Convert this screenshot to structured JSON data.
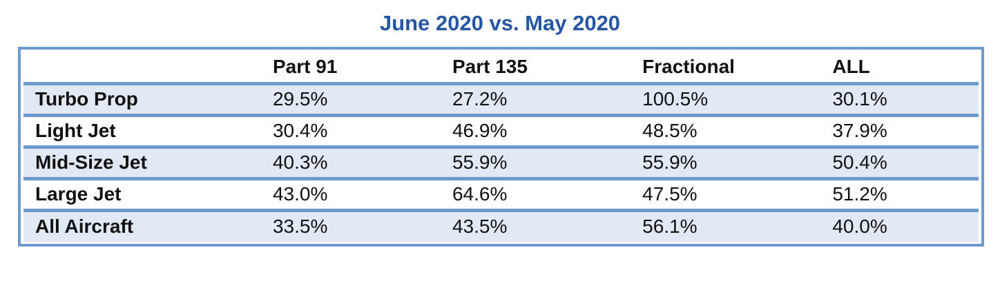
{
  "title": "June 2020 vs. May 2020",
  "colors": {
    "title_blue": "#2456a4",
    "border_blue": "#6e99cc",
    "band_light_blue": "#e0e9f4",
    "band_white": "#ffffff",
    "text": "#111111"
  },
  "chart_data": {
    "type": "table",
    "title": "June 2020 vs. May 2020",
    "columns": [
      "Part 91",
      "Part 135",
      "Fractional",
      "ALL"
    ],
    "row_labels": [
      "Turbo Prop",
      "Light Jet",
      "Mid-Size Jet",
      "Large Jet",
      "All Aircraft"
    ],
    "rows": [
      {
        "label": "Turbo Prop",
        "values": [
          "29.5%",
          "27.2%",
          "100.5%",
          "30.1%"
        ]
      },
      {
        "label": "Light Jet",
        "values": [
          "30.4%",
          "46.9%",
          "48.5%",
          "37.9%"
        ]
      },
      {
        "label": "Mid-Size Jet",
        "values": [
          "40.3%",
          "55.9%",
          "55.9%",
          "50.4%"
        ]
      },
      {
        "label": "Large Jet",
        "values": [
          "43.0%",
          "64.6%",
          "47.5%",
          "51.2%"
        ]
      },
      {
        "label": "All Aircraft",
        "values": [
          "33.5%",
          "43.5%",
          "56.1%",
          "40.0%"
        ]
      }
    ],
    "layout_hints": {
      "banding": "alternating white / light-blue starting light-blue on first data row",
      "header_row_background": "white",
      "column_alignment": "left",
      "vertical_gridlines": false
    }
  }
}
